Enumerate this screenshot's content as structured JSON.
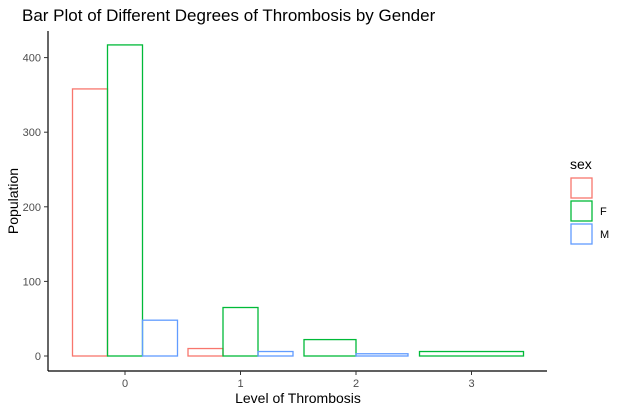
{
  "chart_data": {
    "type": "bar",
    "title": "Bar Plot of Different Degrees of Thrombosis by Gender",
    "xlabel": "Level of Thrombosis",
    "ylabel": "Population",
    "categories": [
      "0",
      "1",
      "2",
      "3"
    ],
    "ylim": [
      0,
      420
    ],
    "yticks": [
      0,
      100,
      200,
      300,
      400
    ],
    "grid": false,
    "legend": {
      "title": "sex",
      "placement": "right",
      "entries": [
        {
          "label": "",
          "color": "#F8766D"
        },
        {
          "label": "F",
          "color": "#00BA38"
        },
        {
          "label": "M",
          "color": "#619CFF"
        }
      ]
    },
    "bars": [
      {
        "category": "0",
        "series": 0,
        "value": 358,
        "color": "#F8766D"
      },
      {
        "category": "0",
        "series": 1,
        "value": 417,
        "color": "#00BA38"
      },
      {
        "category": "0",
        "series": 2,
        "value": 48,
        "color": "#619CFF"
      },
      {
        "category": "1",
        "series": 0,
        "value": 10,
        "color": "#F8766D"
      },
      {
        "category": "1",
        "series": 1,
        "value": 65,
        "color": "#00BA38"
      },
      {
        "category": "1",
        "series": 2,
        "value": 6,
        "color": "#619CFF"
      },
      {
        "category": "2",
        "series": 1,
        "value": 22,
        "color": "#00BA38"
      },
      {
        "category": "2",
        "series": 2,
        "value": 3,
        "color": "#619CFF"
      },
      {
        "category": "3",
        "series": 1,
        "value": 6,
        "color": "#00BA38"
      }
    ]
  }
}
